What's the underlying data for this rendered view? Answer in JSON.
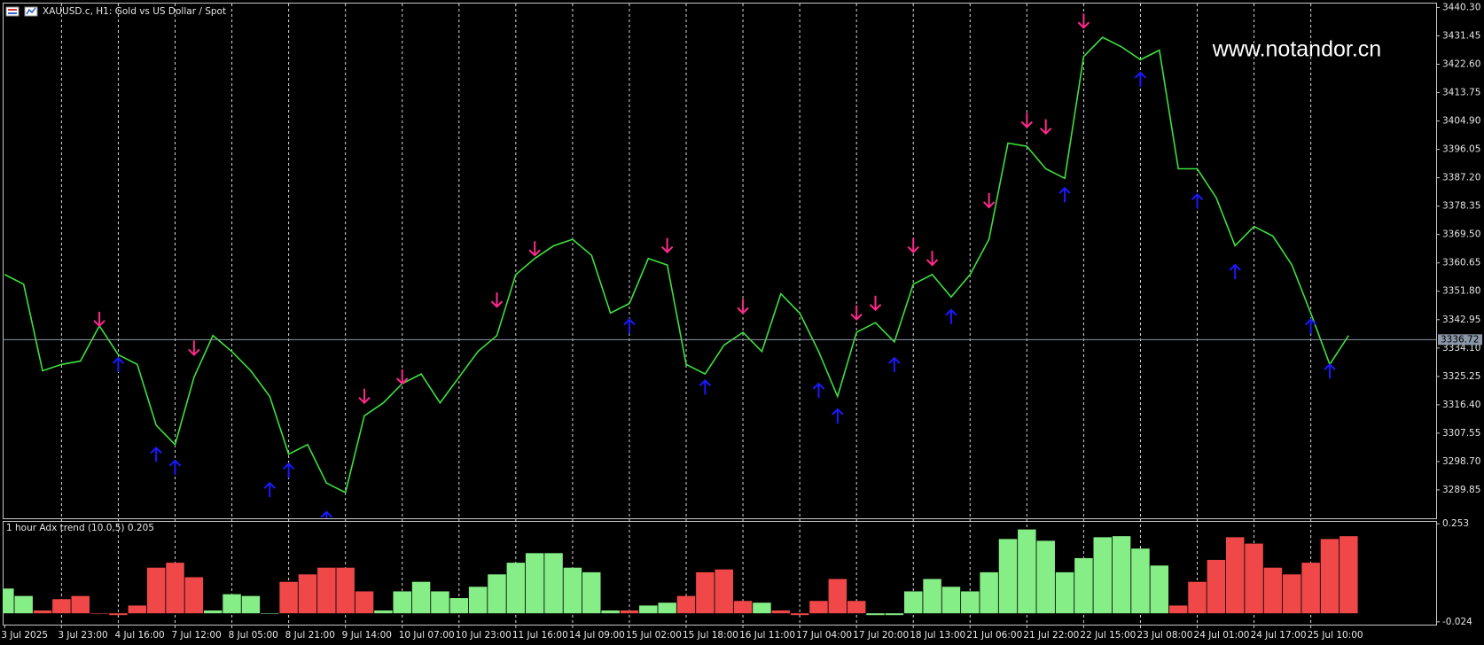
{
  "chart_data": [
    {
      "type": "line",
      "title": "XAUUSD.c, H1:  Gold vs US Dollar / Spot",
      "annotation": "www.notandor.cn",
      "grid": true,
      "current_price": 3336.72,
      "categories": [
        "3 Jul 2025",
        null,
        null,
        "3 Jul 23:00",
        null,
        null,
        "4 Jul 16:00",
        null,
        null,
        "7 Jul 12:00",
        null,
        null,
        "8 Jul 05:00",
        null,
        null,
        "8 Jul 21:00",
        null,
        null,
        "9 Jul 14:00",
        null,
        null,
        "10 Jul 07:00",
        null,
        null,
        "10 Jul 23:00",
        null,
        null,
        "11 Jul 16:00",
        null,
        null,
        "14 Jul 09:00",
        null,
        null,
        "15 Jul 02:00",
        null,
        null,
        "15 Jul 18:00",
        null,
        null,
        "16 Jul 11:00",
        null,
        null,
        "17 Jul 04:00",
        null,
        null,
        "17 Jul 20:00",
        null,
        null,
        "18 Jul 13:00",
        null,
        null,
        "21 Jul 06:00",
        null,
        null,
        "21 Jul 22:00",
        null,
        null,
        "22 Jul 15:00",
        null,
        null,
        "23 Jul 08:00",
        null,
        null,
        "24 Jul 01:00",
        null,
        null,
        "24 Jul 17:00",
        null,
        null,
        "25 Jul 10:00",
        null,
        null
      ],
      "ylim": [
        3281,
        3441.8
      ],
      "yticks": [
        {
          "value": 3440.3,
          "label": "3440.30"
        },
        3431.45,
        {
          "value": 3422.6,
          "label": "3422.60"
        },
        3413.75,
        {
          "value": 3404.9,
          "label": "3404.90"
        },
        3396.05,
        {
          "value": 3387.2,
          "label": "3387.20"
        },
        3378.35,
        {
          "value": 3369.5,
          "label": "3369.50"
        },
        3360.65,
        {
          "value": 3351.8,
          "label": "3351.80"
        },
        3342.95,
        {
          "value": 3334.1,
          "label": "3334.10"
        },
        3325.25,
        {
          "value": 3316.4,
          "label": "3316.40"
        },
        3307.55,
        {
          "value": 3298.7,
          "label": "3298.70"
        },
        3289.85
      ],
      "series": [
        {
          "color": "#3ee03e",
          "values": [
            3357,
            3354,
            3327,
            3329,
            3330,
            3341,
            3332,
            3329,
            3310,
            3304,
            3325,
            3338,
            3333,
            3327,
            3319,
            3301,
            3304,
            3292,
            3289,
            3313,
            3317,
            3323,
            3326,
            3317,
            3325,
            3333,
            3338,
            3357,
            3362,
            3366,
            3368,
            3363,
            3345,
            3348,
            3362,
            3360,
            3329,
            3326,
            3335,
            3339,
            3333,
            3351,
            3345,
            3333,
            3319,
            3339,
            3342,
            3336,
            3354,
            3357,
            3350,
            3357,
            3368,
            3398,
            3397,
            3390,
            3387,
            3425,
            3431,
            3428,
            3424,
            3427,
            3390,
            3390,
            3381,
            3366,
            3372,
            3369,
            3360,
            3345,
            3329,
            3338
          ]
        },
        {
          "color": "#ff2a8c",
          "marker": "down",
          "values": [
            null,
            null,
            null,
            null,
            null,
            3341,
            null,
            null,
            null,
            null,
            3332,
            null,
            null,
            null,
            null,
            null,
            null,
            null,
            null,
            3317,
            null,
            3323,
            null,
            null,
            null,
            null,
            3347,
            null,
            3363,
            null,
            null,
            null,
            null,
            null,
            null,
            3364,
            null,
            null,
            null,
            3345,
            null,
            null,
            null,
            null,
            null,
            3343,
            3346,
            null,
            3364,
            3360,
            null,
            null,
            3378,
            null,
            3403,
            3401,
            null,
            3434,
            null,
            null,
            null,
            null,
            null,
            null,
            null,
            null,
            null,
            null,
            null,
            null,
            null,
            null
          ]
        },
        {
          "color": "#1a1aff",
          "marker": "up",
          "values": [
            null,
            null,
            null,
            null,
            null,
            null,
            3331,
            null,
            3303,
            3299,
            null,
            null,
            null,
            null,
            3292,
            3298,
            null,
            3283,
            null,
            null,
            null,
            null,
            null,
            null,
            null,
            null,
            null,
            null,
            null,
            null,
            null,
            null,
            null,
            3343,
            null,
            null,
            null,
            3324,
            null,
            null,
            null,
            null,
            null,
            3323,
            3315,
            null,
            null,
            3331,
            null,
            null,
            3346,
            null,
            null,
            null,
            null,
            null,
            3384,
            null,
            null,
            null,
            3420,
            null,
            null,
            3382,
            null,
            3360,
            null,
            null,
            null,
            3343,
            3329,
            null
          ]
        }
      ]
    },
    {
      "type": "bar",
      "title": "1 hour Adx trend (10.0,5) 0.205",
      "ylim": [
        -0.032,
        0.261
      ],
      "yticks": [
        0.253,
        -0.024
      ],
      "series": [
        {
          "color": "#86ee86",
          "values": [
            0.07,
            0.049,
            null,
            null,
            null,
            null,
            null,
            null,
            null,
            null,
            null,
            0.008,
            0.054,
            0.049,
            0,
            null,
            null,
            null,
            null,
            null,
            0.008,
            0.062,
            0.089,
            0.062,
            0.043,
            0.075,
            0.11,
            0.143,
            0.17,
            0.17,
            0.129,
            0.116,
            0.008,
            null,
            0.022,
            0.03,
            null,
            null,
            null,
            null,
            0.03,
            null,
            null,
            null,
            null,
            null,
            -0.005,
            -0.005,
            0.062,
            0.097,
            0.075,
            0.062,
            0.116,
            0.21,
            0.237,
            0.205,
            0.116,
            0.156,
            0.215,
            0.218,
            0.183,
            0.135,
            null,
            null,
            null,
            null,
            null,
            null,
            null,
            null,
            null,
            null
          ]
        },
        {
          "color": "#f04848",
          "values": [
            null,
            null,
            0.008,
            0.04,
            0.049,
            0,
            -0.005,
            0.022,
            0.129,
            0.143,
            0.102,
            null,
            null,
            null,
            null,
            0.089,
            0.11,
            0.129,
            0.129,
            0.062,
            null,
            null,
            null,
            null,
            null,
            null,
            null,
            null,
            null,
            null,
            null,
            null,
            null,
            0.008,
            null,
            null,
            0.049,
            0.116,
            0.124,
            0.035,
            null,
            0.008,
            -0.005,
            0.035,
            0.097,
            0.035,
            null,
            null,
            null,
            null,
            null,
            null,
            null,
            null,
            null,
            null,
            null,
            null,
            null,
            null,
            null,
            null,
            0.022,
            0.089,
            0.151,
            0.215,
            0.197,
            0.129,
            0.11,
            0.143,
            0.21,
            0.218
          ]
        }
      ]
    }
  ]
}
